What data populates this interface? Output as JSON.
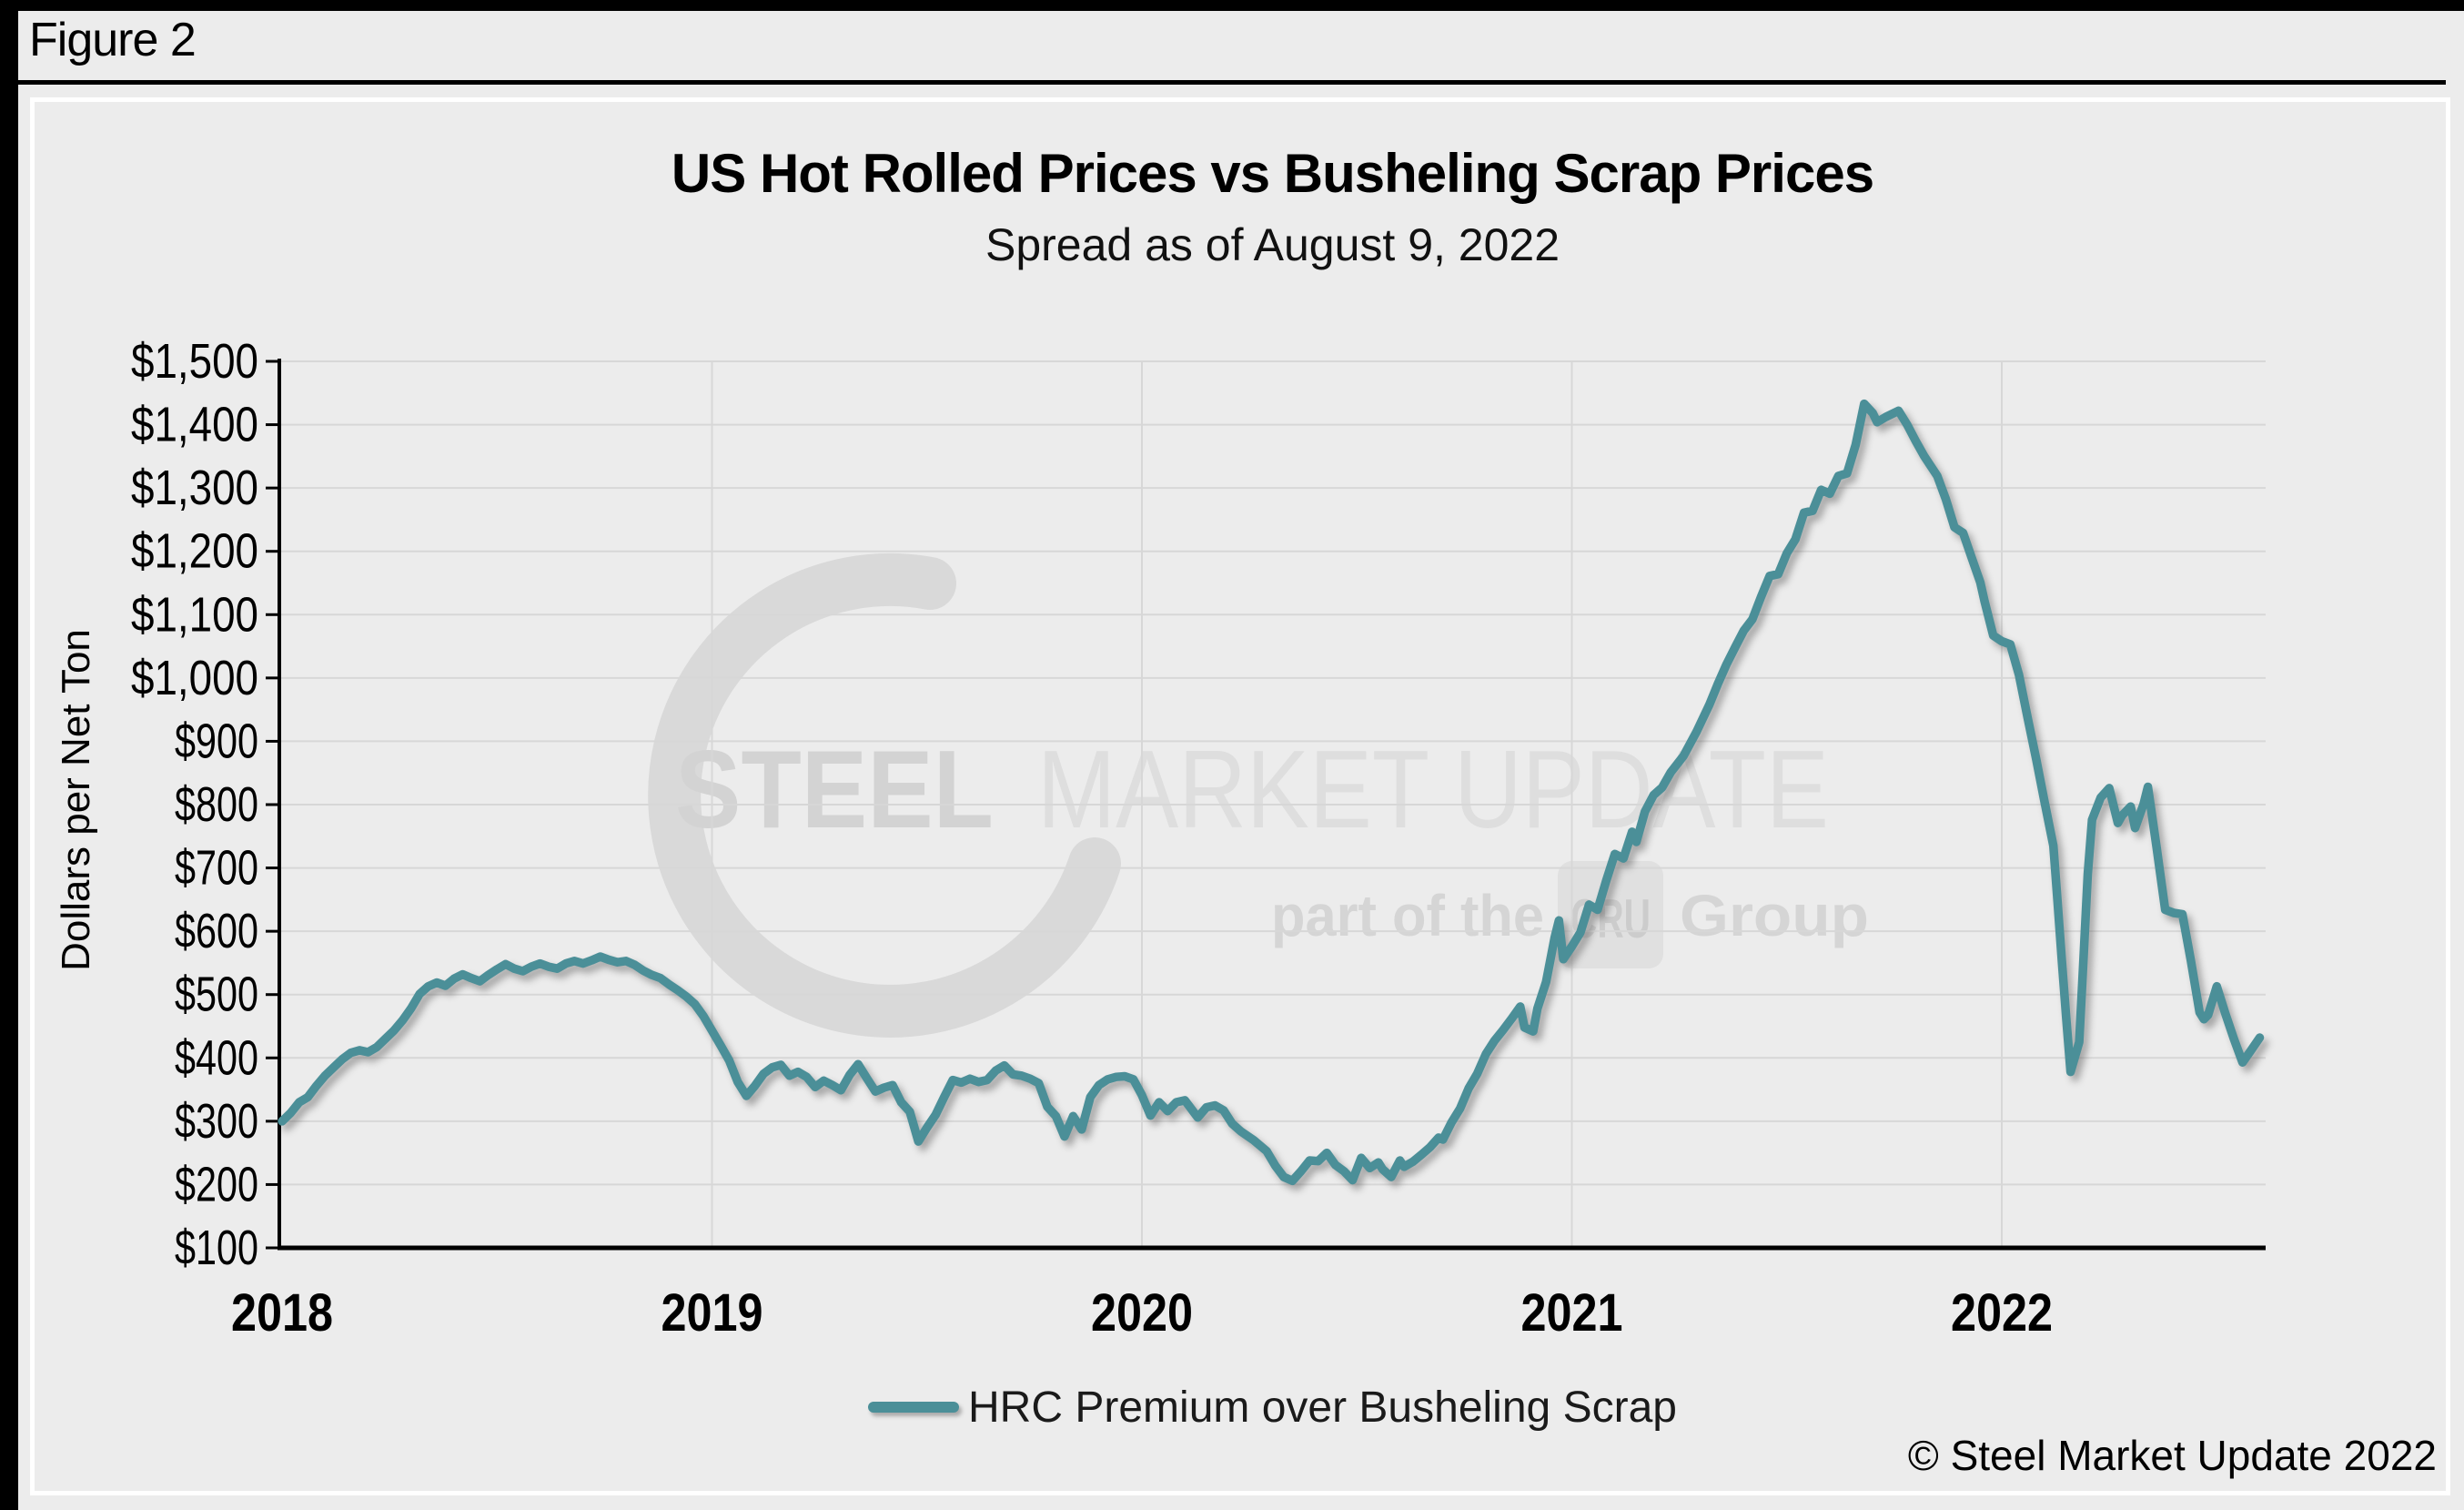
{
  "figure_label": "Figure 2",
  "chart": {
    "title": "US Hot Rolled Prices vs Busheling Scrap Prices",
    "subtitle": "Spread as of August 9, 2022",
    "y_axis_label": "Dollars per Net Ton",
    "legend": {
      "label": "HRC Premium over Busheling Scrap"
    },
    "copyright": "© Steel Market Update 2022"
  },
  "watermark": {
    "word1": "STEEL",
    "word2": "MARKET UPDATE",
    "sub_left": "part of the",
    "sub_box": "CRU",
    "sub_right": "Group"
  },
  "colors": {
    "background": "#ececec",
    "line": "#4b8f98",
    "grid": "#d7d7d7",
    "axis": "#000000",
    "watermark_crescent": "#d9d9d9",
    "watermark_word1": "#d3d3d3",
    "watermark_word2": "#dedede",
    "watermark_sub": "#d5d5d5",
    "watermark_box": "#e0e0e0",
    "watermark_box_text": "#cccccc"
  },
  "chart_data": {
    "type": "line",
    "title": "US Hot Rolled Prices vs Busheling Scrap Prices",
    "subtitle": "Spread as of August 9, 2022",
    "xlabel": "",
    "ylabel": "Dollars per Net Ton",
    "ylim": [
      100,
      1500
    ],
    "y_tick_step": 100,
    "y_tick_prefix": "$",
    "xlim": [
      2018.0,
      2022.65
    ],
    "x_tick_labels": [
      "2018",
      "2019",
      "2020",
      "2021",
      "2022"
    ],
    "x_tick_years": [
      2018,
      2019,
      2020,
      2021,
      2022
    ],
    "grid": true,
    "legend_position": "bottom",
    "series": [
      {
        "name": "HRC Premium over Busheling Scrap",
        "points": [
          [
            2018.0,
            300
          ],
          [
            2018.02,
            313
          ],
          [
            2018.04,
            330
          ],
          [
            2018.06,
            338
          ],
          [
            2018.08,
            356
          ],
          [
            2018.1,
            372
          ],
          [
            2018.12,
            385
          ],
          [
            2018.14,
            398
          ],
          [
            2018.16,
            408
          ],
          [
            2018.18,
            412
          ],
          [
            2018.2,
            409
          ],
          [
            2018.22,
            417
          ],
          [
            2018.24,
            430
          ],
          [
            2018.26,
            443
          ],
          [
            2018.28,
            459
          ],
          [
            2018.3,
            478
          ],
          [
            2018.32,
            501
          ],
          [
            2018.34,
            513
          ],
          [
            2018.36,
            519
          ],
          [
            2018.38,
            514
          ],
          [
            2018.4,
            525
          ],
          [
            2018.42,
            532
          ],
          [
            2018.44,
            526
          ],
          [
            2018.46,
            521
          ],
          [
            2018.48,
            531
          ],
          [
            2018.5,
            540
          ],
          [
            2018.52,
            548
          ],
          [
            2018.54,
            541
          ],
          [
            2018.56,
            537
          ],
          [
            2018.58,
            544
          ],
          [
            2018.6,
            549
          ],
          [
            2018.62,
            544
          ],
          [
            2018.64,
            541
          ],
          [
            2018.66,
            549
          ],
          [
            2018.68,
            553
          ],
          [
            2018.7,
            549
          ],
          [
            2018.72,
            554
          ],
          [
            2018.74,
            560
          ],
          [
            2018.76,
            555
          ],
          [
            2018.78,
            551
          ],
          [
            2018.8,
            553
          ],
          [
            2018.82,
            547
          ],
          [
            2018.84,
            538
          ],
          [
            2018.86,
            531
          ],
          [
            2018.88,
            526
          ],
          [
            2018.9,
            516
          ],
          [
            2018.92,
            507
          ],
          [
            2018.94,
            497
          ],
          [
            2018.96,
            485
          ],
          [
            2018.98,
            466
          ],
          [
            2019.0,
            443
          ],
          [
            2019.02,
            420
          ],
          [
            2019.04,
            396
          ],
          [
            2019.06,
            362
          ],
          [
            2019.08,
            340
          ],
          [
            2019.1,
            356
          ],
          [
            2019.12,
            375
          ],
          [
            2019.14,
            385
          ],
          [
            2019.16,
            389
          ],
          [
            2019.18,
            372
          ],
          [
            2019.2,
            378
          ],
          [
            2019.22,
            370
          ],
          [
            2019.24,
            354
          ],
          [
            2019.26,
            364
          ],
          [
            2019.28,
            357
          ],
          [
            2019.3,
            349
          ],
          [
            2019.32,
            373
          ],
          [
            2019.34,
            390
          ],
          [
            2019.36,
            368
          ],
          [
            2019.38,
            347
          ],
          [
            2019.4,
            353
          ],
          [
            2019.42,
            357
          ],
          [
            2019.44,
            330
          ],
          [
            2019.46,
            315
          ],
          [
            2019.48,
            268
          ],
          [
            2019.5,
            290
          ],
          [
            2019.52,
            310
          ],
          [
            2019.54,
            338
          ],
          [
            2019.56,
            365
          ],
          [
            2019.58,
            361
          ],
          [
            2019.6,
            367
          ],
          [
            2019.62,
            362
          ],
          [
            2019.64,
            365
          ],
          [
            2019.66,
            380
          ],
          [
            2019.68,
            388
          ],
          [
            2019.7,
            374
          ],
          [
            2019.72,
            372
          ],
          [
            2019.74,
            367
          ],
          [
            2019.76,
            360
          ],
          [
            2019.78,
            323
          ],
          [
            2019.8,
            308
          ],
          [
            2019.82,
            276
          ],
          [
            2019.84,
            308
          ],
          [
            2019.86,
            287
          ],
          [
            2019.88,
            338
          ],
          [
            2019.9,
            357
          ],
          [
            2019.92,
            366
          ],
          [
            2019.94,
            370
          ],
          [
            2019.96,
            371
          ],
          [
            2019.98,
            366
          ],
          [
            2020.0,
            341
          ],
          [
            2020.02,
            309
          ],
          [
            2020.04,
            330
          ],
          [
            2020.06,
            316
          ],
          [
            2020.08,
            330
          ],
          [
            2020.1,
            333
          ],
          [
            2020.13,
            306
          ],
          [
            2020.15,
            322
          ],
          [
            2020.17,
            325
          ],
          [
            2020.19,
            317
          ],
          [
            2020.21,
            296
          ],
          [
            2020.23,
            284
          ],
          [
            2020.26,
            270
          ],
          [
            2020.29,
            253
          ],
          [
            2020.31,
            230
          ],
          [
            2020.33,
            212
          ],
          [
            2020.35,
            206
          ],
          [
            2020.37,
            221
          ],
          [
            2020.39,
            238
          ],
          [
            2020.41,
            237
          ],
          [
            2020.43,
            250
          ],
          [
            2020.45,
            231
          ],
          [
            2020.47,
            221
          ],
          [
            2020.49,
            207
          ],
          [
            2020.51,
            242
          ],
          [
            2020.53,
            226
          ],
          [
            2020.55,
            235
          ],
          [
            2020.56,
            224
          ],
          [
            2020.58,
            212
          ],
          [
            2020.6,
            238
          ],
          [
            2020.61,
            228
          ],
          [
            2020.63,
            236
          ],
          [
            2020.65,
            247
          ],
          [
            2020.67,
            259
          ],
          [
            2020.69,
            274
          ],
          [
            2020.7,
            271
          ],
          [
            2020.72,
            298
          ],
          [
            2020.74,
            320
          ],
          [
            2020.76,
            352
          ],
          [
            2020.78,
            375
          ],
          [
            2020.8,
            406
          ],
          [
            2020.82,
            427
          ],
          [
            2020.84,
            444
          ],
          [
            2020.86,
            462
          ],
          [
            2020.88,
            481
          ],
          [
            2020.89,
            448
          ],
          [
            2020.91,
            442
          ],
          [
            2020.92,
            478
          ],
          [
            2020.94,
            520
          ],
          [
            2020.96,
            590
          ],
          [
            2020.97,
            617
          ],
          [
            2020.98,
            556
          ],
          [
            2021.0,
            576
          ],
          [
            2021.02,
            598
          ],
          [
            2021.04,
            642
          ],
          [
            2021.06,
            634
          ],
          [
            2021.08,
            680
          ],
          [
            2021.1,
            722
          ],
          [
            2021.12,
            715
          ],
          [
            2021.14,
            757
          ],
          [
            2021.15,
            741
          ],
          [
            2021.17,
            789
          ],
          [
            2021.19,
            815
          ],
          [
            2021.21,
            827
          ],
          [
            2021.23,
            851
          ],
          [
            2021.26,
            877
          ],
          [
            2021.29,
            915
          ],
          [
            2021.32,
            958
          ],
          [
            2021.34,
            991
          ],
          [
            2021.36,
            1022
          ],
          [
            2021.38,
            1049
          ],
          [
            2021.4,
            1075
          ],
          [
            2021.42,
            1093
          ],
          [
            2021.44,
            1128
          ],
          [
            2021.46,
            1161
          ],
          [
            2021.48,
            1164
          ],
          [
            2021.5,
            1197
          ],
          [
            2021.52,
            1219
          ],
          [
            2021.54,
            1261
          ],
          [
            2021.56,
            1264
          ],
          [
            2021.58,
            1297
          ],
          [
            2021.6,
            1291
          ],
          [
            2021.62,
            1319
          ],
          [
            2021.64,
            1323
          ],
          [
            2021.66,
            1368
          ],
          [
            2021.68,
            1433
          ],
          [
            2021.7,
            1418
          ],
          [
            2021.71,
            1404
          ],
          [
            2021.73,
            1412
          ],
          [
            2021.76,
            1422
          ],
          [
            2021.78,
            1400
          ],
          [
            2021.8,
            1374
          ],
          [
            2021.82,
            1350
          ],
          [
            2021.85,
            1319
          ],
          [
            2021.87,
            1282
          ],
          [
            2021.89,
            1238
          ],
          [
            2021.91,
            1229
          ],
          [
            2021.93,
            1190
          ],
          [
            2021.95,
            1151
          ],
          [
            2021.96,
            1121
          ],
          [
            2021.98,
            1067
          ],
          [
            2022.0,
            1058
          ],
          [
            2022.02,
            1053
          ],
          [
            2022.04,
            1005
          ],
          [
            2022.06,
            938
          ],
          [
            2022.08,
            872
          ],
          [
            2022.1,
            803
          ],
          [
            2022.12,
            735
          ],
          [
            2022.13,
            645
          ],
          [
            2022.14,
            550
          ],
          [
            2022.15,
            462
          ],
          [
            2022.16,
            378
          ],
          [
            2022.18,
            425
          ],
          [
            2022.19,
            556
          ],
          [
            2022.2,
            690
          ],
          [
            2022.21,
            776
          ],
          [
            2022.23,
            811
          ],
          [
            2022.25,
            826
          ],
          [
            2022.27,
            771
          ],
          [
            2022.28,
            783
          ],
          [
            2022.3,
            797
          ],
          [
            2022.31,
            763
          ],
          [
            2022.33,
            801
          ],
          [
            2022.34,
            828
          ],
          [
            2022.36,
            733
          ],
          [
            2022.38,
            634
          ],
          [
            2022.4,
            629
          ],
          [
            2022.42,
            627
          ],
          [
            2022.44,
            553
          ],
          [
            2022.46,
            472
          ],
          [
            2022.47,
            461
          ],
          [
            2022.48,
            468
          ],
          [
            2022.5,
            513
          ],
          [
            2022.52,
            470
          ],
          [
            2022.54,
            430
          ],
          [
            2022.56,
            393
          ],
          [
            2022.58,
            412
          ],
          [
            2022.6,
            432
          ]
        ]
      }
    ]
  }
}
